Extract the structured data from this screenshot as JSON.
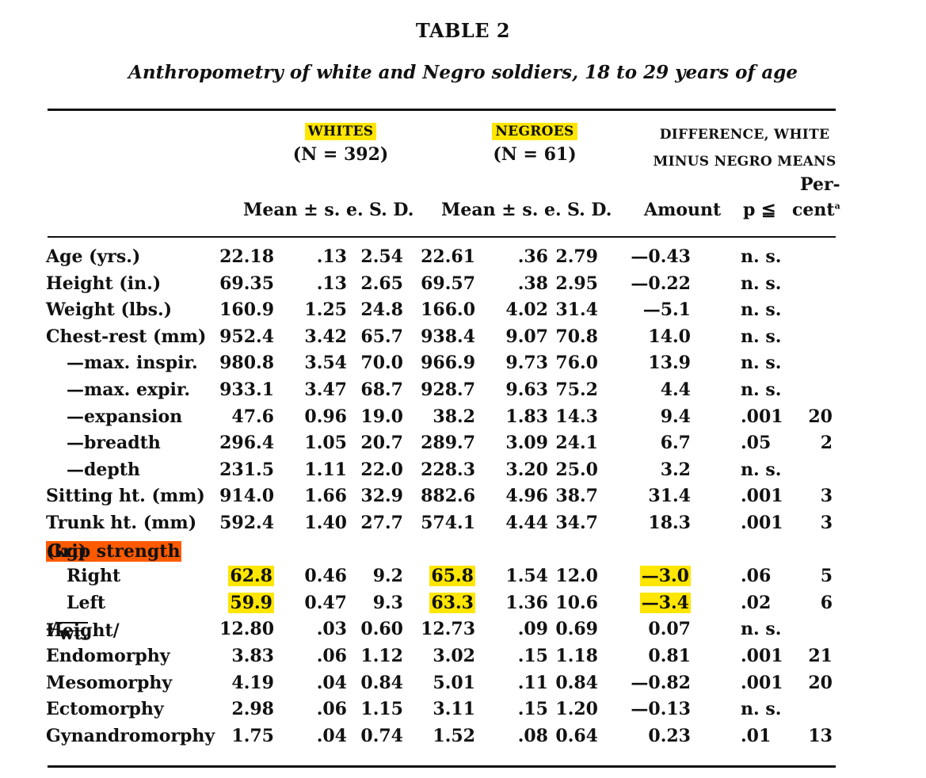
{
  "table": {
    "title": "TABLE 2",
    "subtitle": "Anthropometry of white and Negro soldiers, 18 to 29 years of age",
    "groups": {
      "whites": {
        "name": "WHITES",
        "n": "(N = 392)"
      },
      "negroes": {
        "name": "NEGROES",
        "n": "(N = 61)"
      },
      "difference": {
        "line1": "DIFFERENCE, WHITE",
        "line2": "MINUS NEGRO MEANS"
      }
    },
    "columns": {
      "w_mean_se": "Mean ± s. e.",
      "w_sd": "S. D.",
      "n_mean_se": "Mean ± s. e.",
      "n_sd": "S. D.",
      "amount": "Amount",
      "p": "p ≦",
      "percent_line1": "Per-",
      "percent_line2": "cent",
      "percent_footnote": "a"
    },
    "highlight_colors": {
      "yellow": "#ffe600",
      "orange": "#ff5a00"
    },
    "rows": [
      {
        "label": "Age (yrs.)",
        "w_mean": "22.18",
        "w_se": ".13",
        "w_sd": "2.54",
        "n_mean": "22.61",
        "n_se": ".36",
        "n_sd": "2.79",
        "amount": "—0.43",
        "p": "n. s.",
        "pct": ""
      },
      {
        "label": "Height (in.)",
        "w_mean": "69.35",
        "w_se": ".13",
        "w_sd": "2.65",
        "n_mean": "69.57",
        "n_se": ".38",
        "n_sd": "2.95",
        "amount": "—0.22",
        "p": "n. s.",
        "pct": ""
      },
      {
        "label": "Weight (lbs.)",
        "w_mean": "160.9",
        "w_se": "1.25",
        "w_sd": "24.8",
        "n_mean": "166.0",
        "n_se": "4.02",
        "n_sd": "31.4",
        "amount": "—5.1",
        "p": "n. s.",
        "pct": ""
      },
      {
        "label": "Chest-rest (mm)",
        "w_mean": "952.4",
        "w_se": "3.42",
        "w_sd": "65.7",
        "n_mean": "938.4",
        "n_se": "9.07",
        "n_sd": "70.8",
        "amount": "14.0",
        "p": "n. s.",
        "pct": ""
      },
      {
        "label": "—max. inspir.",
        "w_mean": "980.8",
        "w_se": "3.54",
        "w_sd": "70.0",
        "n_mean": "966.9",
        "n_se": "9.73",
        "n_sd": "76.0",
        "amount": "13.9",
        "p": "n. s.",
        "pct": ""
      },
      {
        "label": "—max. expir.",
        "w_mean": "933.1",
        "w_se": "3.47",
        "w_sd": "68.7",
        "n_mean": "928.7",
        "n_se": "9.63",
        "n_sd": "75.2",
        "amount": "4.4",
        "p": "n. s.",
        "pct": ""
      },
      {
        "label": "—expansion",
        "w_mean": "47.6",
        "w_se": "0.96",
        "w_sd": "19.0",
        "n_mean": "38.2",
        "n_se": "1.83",
        "n_sd": "14.3",
        "amount": "9.4",
        "p": ".001",
        "pct": "20"
      },
      {
        "label": "—breadth",
        "w_mean": "296.4",
        "w_se": "1.05",
        "w_sd": "20.7",
        "n_mean": "289.7",
        "n_se": "3.09",
        "n_sd": "24.1",
        "amount": "6.7",
        "p": ".05",
        "pct": "2"
      },
      {
        "label": "—depth",
        "w_mean": "231.5",
        "w_se": "1.11",
        "w_sd": "22.0",
        "n_mean": "228.3",
        "n_se": "3.20",
        "n_sd": "25.0",
        "amount": "3.2",
        "p": "n. s.",
        "pct": ""
      },
      {
        "label": "Sitting ht. (mm)",
        "w_mean": "914.0",
        "w_se": "1.66",
        "w_sd": "32.9",
        "n_mean": "882.6",
        "n_se": "4.96",
        "n_sd": "38.7",
        "amount": "31.4",
        "p": ".001",
        "pct": "3"
      },
      {
        "label": "Trunk ht. (mm)",
        "w_mean": "592.4",
        "w_se": "1.40",
        "w_sd": "27.7",
        "n_mean": "574.1",
        "n_se": "4.44",
        "n_sd": "34.7",
        "amount": "18.3",
        "p": ".001",
        "pct": "3"
      },
      {
        "label_highlight": "Grip strength",
        "label_rest": " (kg)"
      },
      {
        "label": "Right",
        "w_mean": "62.8",
        "w_se": "0.46",
        "w_sd": "9.2",
        "n_mean": "65.8",
        "n_se": "1.54",
        "n_sd": "12.0",
        "amount": "—3.0",
        "p": ".06",
        "pct": "5"
      },
      {
        "label": "Left",
        "w_mean": "59.9",
        "w_se": "0.47",
        "w_sd": "9.3",
        "n_mean": "63.3",
        "n_se": "1.36",
        "n_sd": "10.6",
        "amount": "—3.4",
        "p": ".02",
        "pct": "6"
      },
      {
        "label_pre": "Height/",
        "label_root_index": "3",
        "label_root_body": "wt.",
        "w_mean": "12.80",
        "w_se": ".03",
        "w_sd": "0.60",
        "n_mean": "12.73",
        "n_se": ".09",
        "n_sd": "0.69",
        "amount": "0.07",
        "p": "n. s.",
        "pct": ""
      },
      {
        "label": "Endomorphy",
        "w_mean": "3.83",
        "w_se": ".06",
        "w_sd": "1.12",
        "n_mean": "3.02",
        "n_se": ".15",
        "n_sd": "1.18",
        "amount": "0.81",
        "p": ".001",
        "pct": "21"
      },
      {
        "label": "Mesomorphy",
        "w_mean": "4.19",
        "w_se": ".04",
        "w_sd": "0.84",
        "n_mean": "5.01",
        "n_se": ".11",
        "n_sd": "0.84",
        "amount": "—0.82",
        "p": ".001",
        "pct": "20"
      },
      {
        "label": "Ectomorphy",
        "w_mean": "2.98",
        "w_se": ".06",
        "w_sd": "1.15",
        "n_mean": "3.11",
        "n_se": ".15",
        "n_sd": "1.20",
        "amount": "—0.13",
        "p": "n. s.",
        "pct": ""
      },
      {
        "label": "Gynandromorphy",
        "w_mean": "1.75",
        "w_se": ".04",
        "w_sd": "0.74",
        "n_mean": "1.52",
        "n_se": ".08",
        "n_sd": "0.64",
        "amount": "0.23",
        "p": ".01",
        "pct": "13"
      }
    ]
  }
}
